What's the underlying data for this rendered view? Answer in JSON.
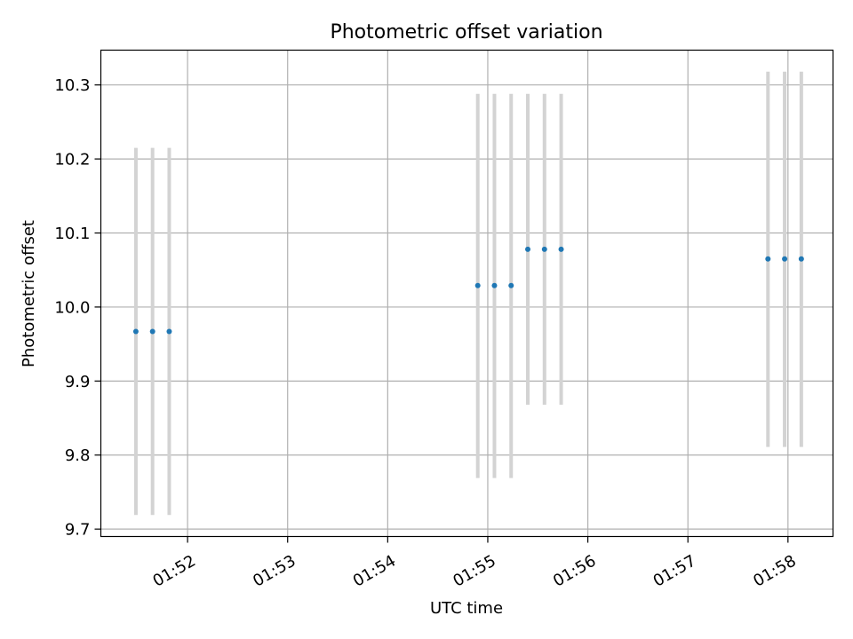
{
  "chart_data": {
    "type": "scatter",
    "title": "Photometric offset variation",
    "xlabel": "UTC time",
    "ylabel": "Photometric offset",
    "x_ticks": [
      "01:52",
      "01:53",
      "01:54",
      "01:55",
      "01:56",
      "01:57",
      "01:58"
    ],
    "y_ticks": [
      "9.7",
      "9.8",
      "9.9",
      "10.0",
      "10.1",
      "10.2",
      "10.3"
    ],
    "xlim": [
      "01:51:08",
      "01:58:27"
    ],
    "ylim": [
      9.69,
      10.347
    ],
    "grid": true,
    "colors": {
      "points": "#1f77b4",
      "errorbars": "#d3d3d3",
      "grid": "#b0b0b0"
    },
    "points": [
      {
        "x": "01:51:29",
        "y": 9.967,
        "ylow": 9.719,
        "yhigh": 10.215
      },
      {
        "x": "01:51:39",
        "y": 9.967,
        "ylow": 9.719,
        "yhigh": 10.215
      },
      {
        "x": "01:51:49",
        "y": 9.967,
        "ylow": 9.719,
        "yhigh": 10.215
      },
      {
        "x": "01:54:54",
        "y": 10.029,
        "ylow": 9.769,
        "yhigh": 10.288
      },
      {
        "x": "01:55:04",
        "y": 10.029,
        "ylow": 9.769,
        "yhigh": 10.288
      },
      {
        "x": "01:55:14",
        "y": 10.029,
        "ylow": 9.769,
        "yhigh": 10.288
      },
      {
        "x": "01:55:24",
        "y": 10.078,
        "ylow": 9.868,
        "yhigh": 10.288
      },
      {
        "x": "01:55:34",
        "y": 10.078,
        "ylow": 9.868,
        "yhigh": 10.288
      },
      {
        "x": "01:55:44",
        "y": 10.078,
        "ylow": 9.868,
        "yhigh": 10.288
      },
      {
        "x": "01:57:48",
        "y": 10.065,
        "ylow": 9.811,
        "yhigh": 10.318
      },
      {
        "x": "01:57:58",
        "y": 10.065,
        "ylow": 9.811,
        "yhigh": 10.318
      },
      {
        "x": "01:58:08",
        "y": 10.065,
        "ylow": 9.811,
        "yhigh": 10.318
      }
    ]
  }
}
